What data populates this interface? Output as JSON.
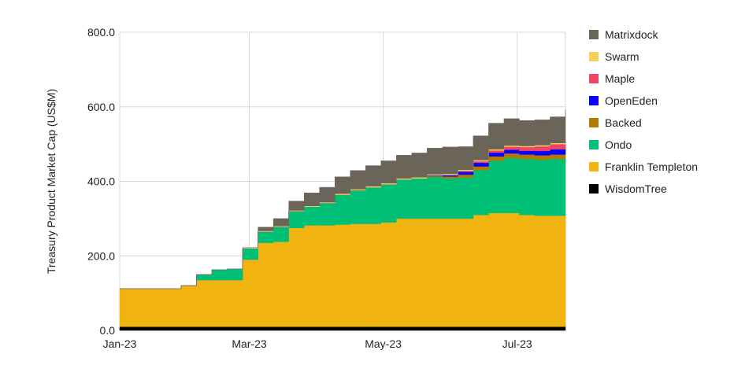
{
  "chart_data": {
    "type": "area",
    "stacked": true,
    "ylabel": "Treasury Product Market Cap (US$M)",
    "xlabel": "",
    "ylim": [
      0,
      800
    ],
    "yticks": [
      "0.0",
      "200.0",
      "400.0",
      "600.0",
      "800.0"
    ],
    "ytick_values": [
      0,
      200,
      400,
      600,
      800
    ],
    "xticks": [
      {
        "label": "Jan-23",
        "date": "2023-01-01"
      },
      {
        "label": "Mar-23",
        "date": "2023-03-01"
      },
      {
        "label": "May-23",
        "date": "2023-05-01"
      },
      {
        "label": "Jul-23",
        "date": "2023-07-01"
      }
    ],
    "grid": true,
    "legend_position": "right",
    "x": [
      "2023-01-01",
      "2023-01-08",
      "2023-01-15",
      "2023-01-22",
      "2023-01-29",
      "2023-02-05",
      "2023-02-12",
      "2023-02-19",
      "2023-02-26",
      "2023-03-05",
      "2023-03-12",
      "2023-03-19",
      "2023-03-26",
      "2023-04-02",
      "2023-04-09",
      "2023-04-16",
      "2023-04-23",
      "2023-04-30",
      "2023-05-07",
      "2023-05-14",
      "2023-05-21",
      "2023-05-28",
      "2023-06-04",
      "2023-06-11",
      "2023-06-18",
      "2023-06-25",
      "2023-07-02",
      "2023-07-09",
      "2023-07-16",
      "2023-07-23"
    ],
    "series": [
      {
        "name": "WisdomTree",
        "color": "#000000",
        "values": [
          10,
          10,
          10,
          10,
          10,
          10,
          10,
          10,
          10,
          10,
          10,
          10,
          10,
          10,
          10,
          10,
          10,
          10,
          10,
          10,
          10,
          10,
          10,
          10,
          10,
          10,
          10,
          10,
          10,
          10
        ]
      },
      {
        "name": "Franklin Templeton",
        "color": "#f0b30f",
        "values": [
          102,
          102,
          102,
          102,
          110,
          125,
          125,
          125,
          180,
          225,
          228,
          265,
          272,
          272,
          274,
          276,
          276,
          280,
          290,
          290,
          290,
          290,
          290,
          300,
          305,
          305,
          300,
          298,
          298,
          298
        ]
      },
      {
        "name": "Ondo",
        "color": "#00bf76",
        "values": [
          0,
          0,
          0,
          0,
          0,
          15,
          28,
          30,
          30,
          30,
          40,
          45,
          50,
          60,
          80,
          90,
          98,
          102,
          105,
          108,
          112,
          108,
          110,
          120,
          140,
          148,
          150,
          150,
          152,
          155
        ]
      },
      {
        "name": "Backed",
        "color": "#b07c00",
        "values": [
          0,
          0,
          0,
          0,
          0,
          0,
          0,
          0,
          0,
          0,
          0,
          0,
          0,
          0,
          0,
          0,
          0,
          0,
          0,
          0,
          2,
          5,
          8,
          10,
          12,
          12,
          12,
          12,
          12,
          12
        ]
      },
      {
        "name": "OpenEden",
        "color": "#0a00ff",
        "values": [
          0,
          0,
          0,
          0,
          0,
          0,
          0,
          0,
          0,
          0,
          0,
          0,
          0,
          0,
          0,
          0,
          0,
          0,
          0,
          0,
          2,
          4,
          8,
          10,
          10,
          10,
          10,
          12,
          14,
          16
        ]
      },
      {
        "name": "Maple",
        "color": "#f04464",
        "values": [
          0,
          0,
          0,
          0,
          0,
          0,
          0,
          0,
          0,
          0,
          0,
          0,
          0,
          0,
          0,
          0,
          0,
          0,
          0,
          0,
          0,
          0,
          2,
          4,
          6,
          8,
          10,
          12,
          14,
          16
        ]
      },
      {
        "name": "Swarm",
        "color": "#f5cf5a",
        "values": [
          0,
          0,
          0,
          0,
          0,
          0,
          0,
          0,
          2,
          2,
          2,
          2,
          2,
          2,
          3,
          3,
          3,
          3,
          3,
          3,
          3,
          3,
          3,
          3,
          3,
          3,
          3,
          3,
          3,
          3
        ]
      },
      {
        "name": "Matrixdock",
        "color": "#6b6458",
        "values": [
          0,
          0,
          0,
          0,
          0,
          0,
          0,
          0,
          0,
          10,
          20,
          25,
          35,
          40,
          45,
          50,
          55,
          60,
          62,
          65,
          70,
          72,
          62,
          65,
          70,
          72,
          68,
          68,
          70,
          82
        ]
      }
    ]
  }
}
